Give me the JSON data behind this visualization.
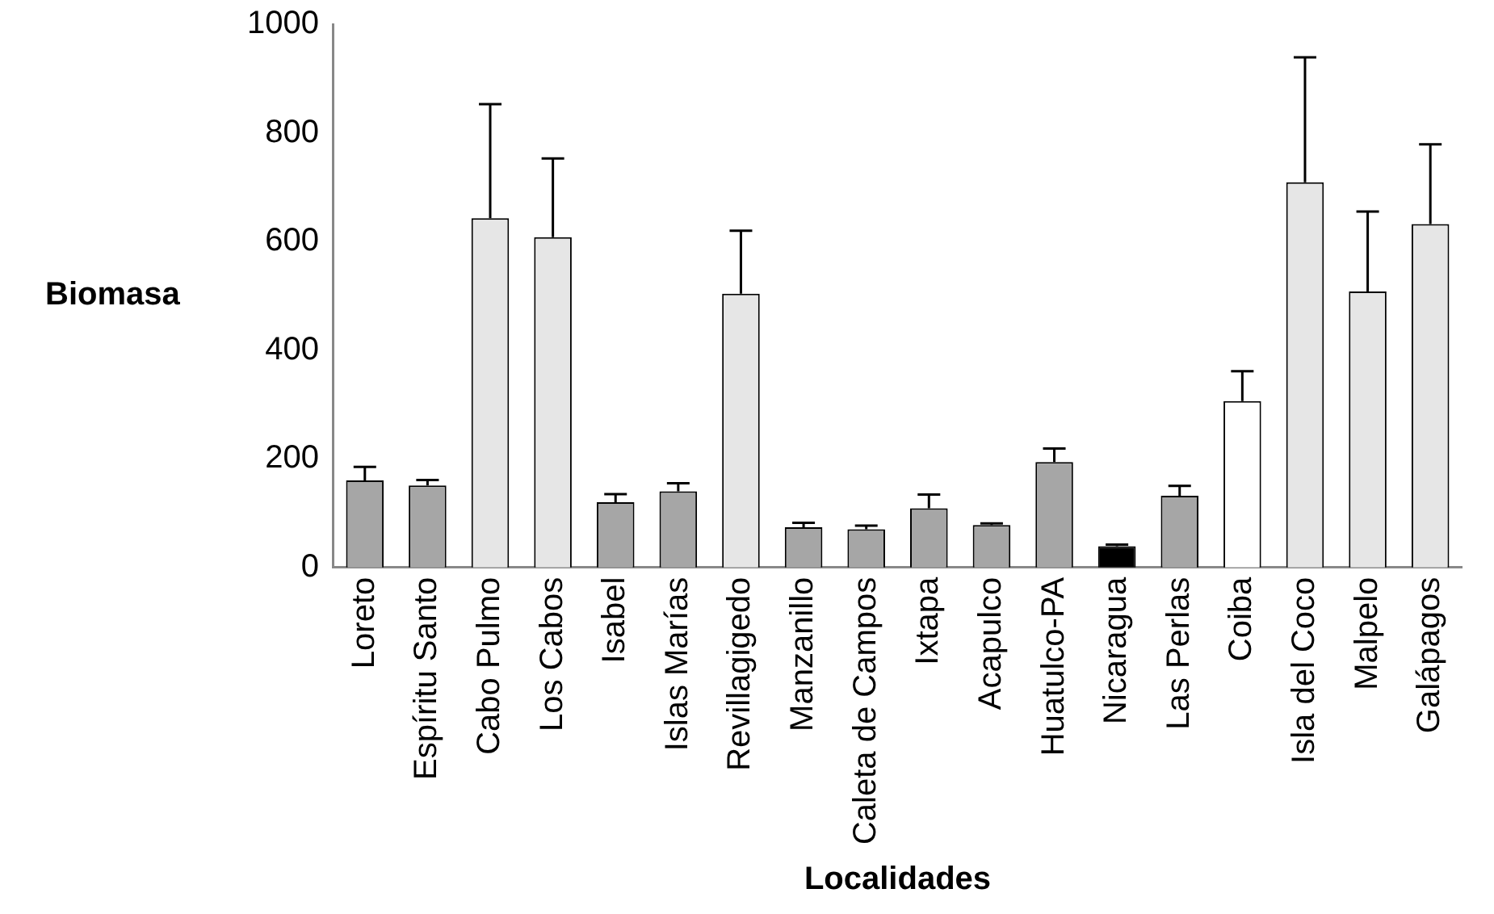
{
  "chart_data": {
    "type": "bar",
    "xlabel": "Localidades",
    "ylabel": "Biomasa",
    "categories": [
      "Loreto",
      "Espíritu Santo",
      "Cabo Pulmo",
      "Los Cabos",
      "Isabel",
      "Islas Marías",
      "Revillagigedo",
      "Manzanillo",
      "Caleta de Campos",
      "Ixtapa",
      "Acapulco",
      "Huatulco-PA",
      "Nicaragua",
      "Las Perlas",
      "Coiba",
      "Isla del Coco",
      "Malpelo",
      "Galápagos"
    ],
    "values": [
      160,
      151,
      643,
      608,
      120,
      140,
      504,
      74,
      70,
      109,
      78,
      194,
      39,
      132,
      306,
      709,
      508,
      632
    ],
    "errors": [
      [
        160,
        185
      ],
      [
        151,
        161
      ],
      [
        643,
        853
      ],
      [
        608,
        753
      ],
      [
        120,
        135
      ],
      [
        140,
        155
      ],
      [
        504,
        620
      ],
      [
        74,
        82
      ],
      [
        70,
        77
      ],
      [
        109,
        134
      ],
      [
        78,
        81
      ],
      [
        194,
        219
      ],
      [
        39,
        42
      ],
      [
        132,
        150
      ],
      [
        306,
        361
      ],
      [
        709,
        939
      ],
      [
        508,
        655
      ],
      [
        632,
        779
      ]
    ],
    "colors": [
      "#a6a6a6",
      "#a6a6a6",
      "#e6e6e6",
      "#e6e6e6",
      "#a6a6a6",
      "#a6a6a6",
      "#e6e6e6",
      "#a6a6a6",
      "#a6a6a6",
      "#a6a6a6",
      "#a6a6a6",
      "#a6a6a6",
      "#000000",
      "#a6a6a6",
      "#ffffff",
      "#e6e6e6",
      "#e6e6e6",
      "#e6e6e6"
    ],
    "ylim": [
      0,
      1000
    ],
    "yticks": [
      0,
      200,
      400,
      600,
      800,
      1000
    ],
    "grid": false,
    "legend": false
  }
}
